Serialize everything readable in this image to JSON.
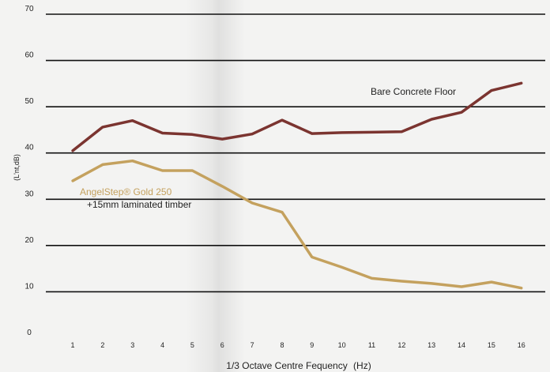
{
  "chart_data": {
    "type": "line",
    "title": "",
    "xlabel_main": "1/3 Octave Centre Fequency",
    "xlabel_unit": "(Hz)",
    "ylabel": "(L'nt,dB)",
    "x": [
      1,
      2,
      3,
      4,
      5,
      6,
      7,
      8,
      9,
      10,
      11,
      12,
      13,
      14,
      15,
      16
    ],
    "x_tick_labels": [
      "1",
      "2",
      "3",
      "4",
      "5",
      "6",
      "7",
      "8",
      "9",
      "10",
      "11",
      "12",
      "13",
      "14",
      "15",
      "16"
    ],
    "y_ticks": [
      0,
      10,
      20,
      30,
      40,
      50,
      60,
      70
    ],
    "y_tick_labels": [
      "0",
      "10",
      "20",
      "30",
      "40",
      "50",
      "60",
      "70"
    ],
    "xlim": [
      0.1,
      16.8
    ],
    "ylim": [
      0,
      70
    ],
    "grid": true,
    "series": [
      {
        "name": "Bare Concrete Floor",
        "color": "#7b3430",
        "values": [
          40.5,
          45.6,
          47.0,
          44.3,
          44.0,
          43.0,
          44.1,
          47.1,
          44.2,
          44.4,
          44.5,
          44.6,
          47.3,
          48.8,
          53.5,
          55.1
        ]
      },
      {
        "name": "AngelStep® Gold 250",
        "name_line2": "+15mm laminated timber",
        "color": "#c4a15e",
        "values": [
          34.0,
          37.5,
          38.3,
          36.2,
          36.2,
          32.8,
          29.2,
          27.2,
          17.5,
          15.3,
          12.9,
          12.3,
          11.8,
          11.1,
          12.1,
          10.8
        ]
      }
    ]
  }
}
